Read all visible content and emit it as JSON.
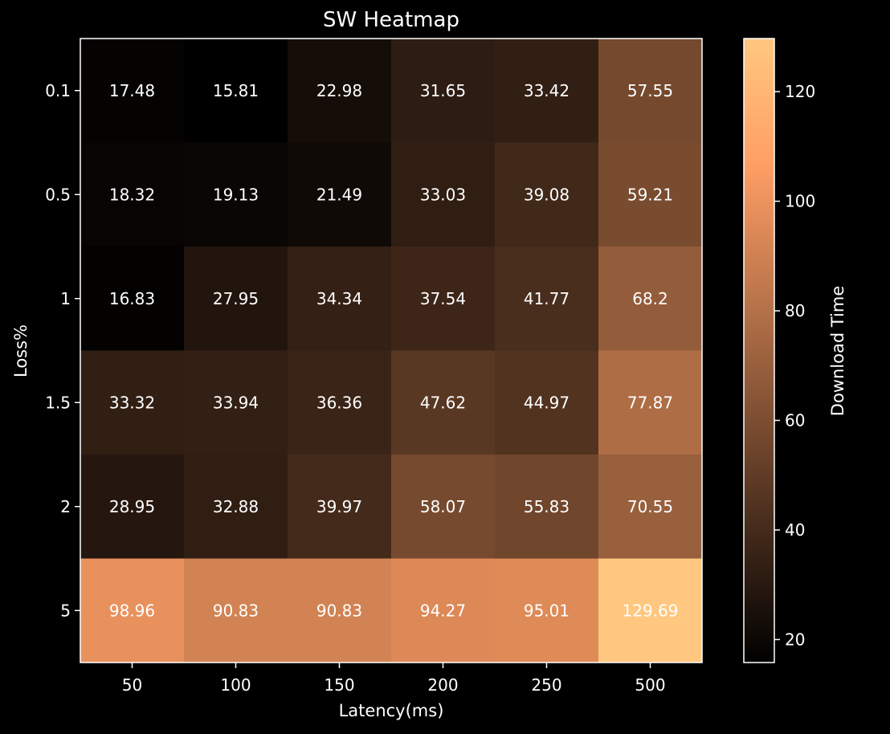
{
  "chart_data": {
    "type": "heatmap",
    "title": "SW Heatmap",
    "xlabel": "Latency(ms)",
    "ylabel": "Loss%",
    "x_categories": [
      "50",
      "100",
      "150",
      "200",
      "250",
      "500"
    ],
    "y_categories": [
      "0.1",
      "0.5",
      "1",
      "1.5",
      "2",
      "5"
    ],
    "values": [
      [
        17.48,
        15.81,
        22.98,
        31.65,
        33.42,
        57.55
      ],
      [
        18.32,
        19.13,
        21.49,
        33.03,
        39.08,
        59.21
      ],
      [
        16.83,
        27.95,
        34.34,
        37.54,
        41.77,
        68.2
      ],
      [
        33.32,
        33.94,
        36.36,
        47.62,
        44.97,
        77.87
      ],
      [
        28.95,
        32.88,
        39.97,
        58.07,
        55.83,
        70.55
      ],
      [
        98.96,
        90.83,
        90.83,
        94.27,
        95.01,
        129.69
      ]
    ],
    "value_labels": [
      [
        "17.48",
        "15.81",
        "22.98",
        "31.65",
        "33.42",
        "57.55"
      ],
      [
        "18.32",
        "19.13",
        "21.49",
        "33.03",
        "39.08",
        "59.21"
      ],
      [
        "16.83",
        "27.95",
        "34.34",
        "37.54",
        "41.77",
        "68.2"
      ],
      [
        "33.32",
        "33.94",
        "36.36",
        "47.62",
        "44.97",
        "77.87"
      ],
      [
        "28.95",
        "32.88",
        "39.97",
        "58.07",
        "55.83",
        "70.55"
      ],
      [
        "98.96",
        "90.83",
        "90.83",
        "94.27",
        "95.01",
        "129.69"
      ]
    ],
    "colorbar": {
      "label": "Download Time",
      "ticks": [
        20,
        40,
        60,
        80,
        100,
        120
      ],
      "tick_labels": [
        "20",
        "40",
        "60",
        "80",
        "100",
        "120"
      ],
      "range": [
        15.81,
        129.69
      ],
      "colormap": "copper"
    },
    "grid": false,
    "colors": {
      "background": "#000000",
      "text": "#ffffff",
      "colormap_low": "#000000",
      "colormap_high": "#ffc77f"
    }
  }
}
